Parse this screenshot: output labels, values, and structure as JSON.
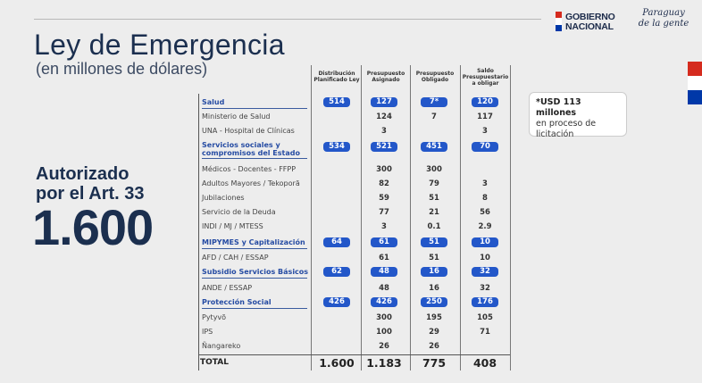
{
  "header": {
    "logo_line1": "GOBIERNO",
    "logo_line2": "NACIONAL",
    "slogan_line1": "Paraguay",
    "slogan_line2": "de la gente"
  },
  "title": "Ley de Emergencia",
  "subtitle": "(en millones de dólares)",
  "authorized_line1": "Autorizado",
  "authorized_line2": "por el Art. 33",
  "authorized_value": "1.600",
  "note": {
    "bold": "*USD 113 millones",
    "rest": "en proceso de licitación"
  },
  "columns": [
    "Distribución Planificado Ley",
    "Presupuesto Asignado",
    "Presupuesto Obligado",
    "Saldo Presupuestario a obligar"
  ],
  "rows": [
    {
      "label": "Salud",
      "section": true,
      "values": [
        "514",
        "127",
        "7*",
        "120"
      ]
    },
    {
      "label": "Ministerio de Salud",
      "section": false,
      "values": [
        "",
        "124",
        "7",
        "117"
      ]
    },
    {
      "label": "UNA - Hospital de Clínicas",
      "section": false,
      "values": [
        "",
        "3",
        "",
        "3"
      ]
    },
    {
      "label": "Servicios sociales y compromisos del Estado",
      "section": true,
      "values": [
        "534",
        "521",
        "451",
        "70"
      ]
    },
    {
      "label": "Médicos - Docentes - FFPP",
      "section": false,
      "values": [
        "",
        "300",
        "300",
        ""
      ]
    },
    {
      "label": "Adultos Mayores / Tekoporã",
      "section": false,
      "values": [
        "",
        "82",
        "79",
        "3"
      ]
    },
    {
      "label": "Jubilaciones",
      "section": false,
      "values": [
        "",
        "59",
        "51",
        "8"
      ]
    },
    {
      "label": "Servicio de la Deuda",
      "section": false,
      "values": [
        "",
        "77",
        "21",
        "56"
      ]
    },
    {
      "label": "INDI / MJ / MTESS",
      "section": false,
      "values": [
        "",
        "3",
        "0.1",
        "2.9"
      ]
    },
    {
      "label": "MIPYMES y Capitalización",
      "section": true,
      "values": [
        "64",
        "61",
        "51",
        "10"
      ]
    },
    {
      "label": "AFD / CAH / ESSAP",
      "section": false,
      "values": [
        "",
        "61",
        "51",
        "10"
      ]
    },
    {
      "label": "Subsidio Servicios Básicos",
      "section": true,
      "values": [
        "62",
        "48",
        "16",
        "32"
      ]
    },
    {
      "label": "ANDE / ESSAP",
      "section": false,
      "values": [
        "",
        "48",
        "16",
        "32"
      ]
    },
    {
      "label": "Protección Social",
      "section": true,
      "values": [
        "426",
        "426",
        "250",
        "176"
      ]
    },
    {
      "label": "Pytyvõ",
      "section": false,
      "values": [
        "",
        "300",
        "195",
        "105"
      ]
    },
    {
      "label": "IPS",
      "section": false,
      "values": [
        "",
        "100",
        "29",
        "71"
      ]
    },
    {
      "label": "Ñangareko",
      "section": false,
      "values": [
        "",
        "26",
        "26",
        ""
      ]
    }
  ],
  "total": {
    "label": "TOTAL",
    "values": [
      "1.600",
      "1.183",
      "775",
      "408"
    ]
  },
  "colors": {
    "accent_blue": "#2357c9",
    "flag_red": "#d52b1e",
    "flag_blue": "#0038a8",
    "title_navy": "#1b2f4f"
  }
}
